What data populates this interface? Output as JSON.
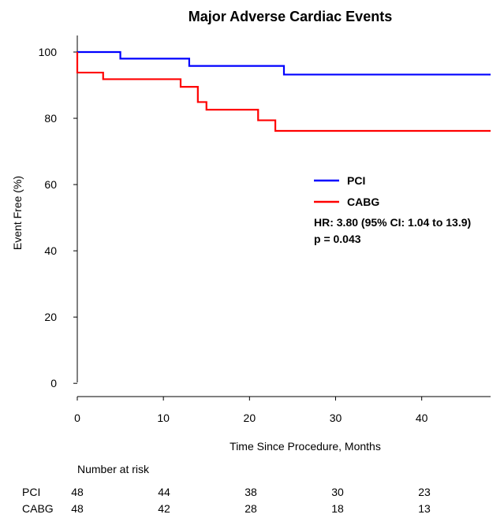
{
  "chart_data": {
    "type": "line",
    "title": "Major Adverse Cardiac Events",
    "xlabel": "Time Since Procedure, Months",
    "ylabel": "Event Free (%)",
    "xlim": [
      0,
      48
    ],
    "ylim": [
      -4,
      105
    ],
    "x_ticks": [
      0,
      10,
      20,
      30,
      40
    ],
    "y_ticks": [
      0,
      20,
      40,
      60,
      80,
      100
    ],
    "grid": false,
    "legend_position": "right",
    "series": [
      {
        "name": "PCI",
        "color": "#0000ff",
        "step": true,
        "points": [
          [
            0,
            100
          ],
          [
            5,
            100
          ],
          [
            5,
            98
          ],
          [
            13,
            98
          ],
          [
            13,
            95.8
          ],
          [
            24,
            95.8
          ],
          [
            24,
            93.2
          ],
          [
            48,
            93.2
          ]
        ]
      },
      {
        "name": "CABG",
        "color": "#ff0000",
        "step": true,
        "points": [
          [
            0,
            100
          ],
          [
            0,
            93.8
          ],
          [
            3,
            93.8
          ],
          [
            3,
            91.8
          ],
          [
            12,
            91.8
          ],
          [
            12,
            89.5
          ],
          [
            14,
            89.5
          ],
          [
            14,
            84.9
          ],
          [
            15,
            84.9
          ],
          [
            15,
            82.6
          ],
          [
            21,
            82.6
          ],
          [
            21,
            79.4
          ],
          [
            23,
            79.4
          ],
          [
            23,
            76.2
          ],
          [
            48,
            76.2
          ]
        ]
      }
    ],
    "annotations": [
      "HR: 3.80 (95% CI: 1.04 to 13.9)",
      "p = 0.043"
    ],
    "risk_table": {
      "header": "Number at risk",
      "rows": [
        {
          "label": "PCI",
          "values": [
            "48",
            "44",
            "38",
            "30",
            "23"
          ]
        },
        {
          "label": "CABG",
          "values": [
            "48",
            "42",
            "28",
            "18",
            "13"
          ]
        }
      ]
    }
  }
}
